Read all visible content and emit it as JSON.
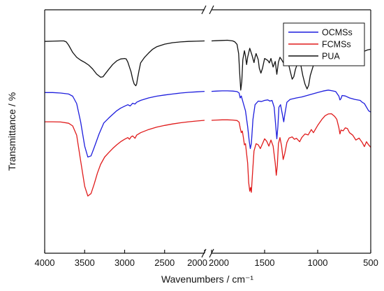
{
  "chart_data": {
    "type": "line",
    "xlabel": "Wavenumbers / cm⁻¹",
    "ylabel": "Transmittance / %",
    "grid": false,
    "legend_placement": "top-right",
    "x_axis": {
      "segments": [
        {
          "min": 4000,
          "max": 2000,
          "ticks": [
            4000,
            3500,
            3000,
            2500,
            2000
          ]
        },
        {
          "min": 2000,
          "max": 500,
          "ticks": [
            2000,
            1500,
            1000,
            500
          ]
        }
      ],
      "break": true
    },
    "ylim": [
      0,
      100
    ],
    "series": [
      {
        "name": "OCMSs",
        "color": "#1d1ddd",
        "points": [
          [
            4000,
            66
          ],
          [
            3900,
            66
          ],
          [
            3800,
            65.8
          ],
          [
            3700,
            65.4
          ],
          [
            3650,
            64.5
          ],
          [
            3600,
            61.5
          ],
          [
            3550,
            54
          ],
          [
            3500,
            44
          ],
          [
            3460,
            39.5
          ],
          [
            3420,
            40
          ],
          [
            3380,
            43.5
          ],
          [
            3320,
            49
          ],
          [
            3260,
            53.5
          ],
          [
            3200,
            55.5
          ],
          [
            3150,
            57
          ],
          [
            3100,
            58.5
          ],
          [
            3050,
            59.6
          ],
          [
            3000,
            60.4
          ],
          [
            2960,
            61
          ],
          [
            2930,
            60.5
          ],
          [
            2900,
            61.6
          ],
          [
            2870,
            61.3
          ],
          [
            2850,
            62
          ],
          [
            2800,
            62.8
          ],
          [
            2700,
            63.8
          ],
          [
            2600,
            64.5
          ],
          [
            2500,
            65
          ],
          [
            2400,
            65.4
          ],
          [
            2300,
            65.8
          ],
          [
            2200,
            66.1
          ],
          [
            2100,
            66.3
          ],
          [
            2000,
            66.5
          ],
          [
            1950,
            66.6
          ],
          [
            1900,
            66.7
          ],
          [
            1850,
            66.7
          ],
          [
            1800,
            66.6
          ],
          [
            1760,
            66.4
          ],
          [
            1740,
            65.8
          ],
          [
            1730,
            63.8
          ],
          [
            1720,
            64.6
          ],
          [
            1700,
            61.5
          ],
          [
            1680,
            58.5
          ],
          [
            1660,
            52
          ],
          [
            1645,
            46
          ],
          [
            1635,
            43
          ],
          [
            1625,
            45
          ],
          [
            1610,
            55
          ],
          [
            1590,
            61
          ],
          [
            1560,
            62.5
          ],
          [
            1530,
            62.3
          ],
          [
            1500,
            62.8
          ],
          [
            1470,
            63
          ],
          [
            1450,
            62.5
          ],
          [
            1430,
            62.8
          ],
          [
            1410,
            60
          ],
          [
            1395,
            52
          ],
          [
            1385,
            47
          ],
          [
            1375,
            52
          ],
          [
            1365,
            60
          ],
          [
            1350,
            61
          ],
          [
            1330,
            56.5
          ],
          [
            1320,
            54
          ],
          [
            1310,
            57
          ],
          [
            1290,
            62
          ],
          [
            1260,
            63.2
          ],
          [
            1200,
            63.8
          ],
          [
            1150,
            64.2
          ],
          [
            1100,
            64.8
          ],
          [
            1050,
            65.4
          ],
          [
            1000,
            66
          ],
          [
            950,
            66.6
          ],
          [
            900,
            67
          ],
          [
            860,
            66.7
          ],
          [
            830,
            66.4
          ],
          [
            800,
            64.5
          ],
          [
            790,
            63
          ],
          [
            780,
            63.5
          ],
          [
            770,
            64.8
          ],
          [
            740,
            64.6
          ],
          [
            700,
            63.8
          ],
          [
            650,
            63.2
          ],
          [
            600,
            62.8
          ],
          [
            580,
            62
          ],
          [
            560,
            61.5
          ],
          [
            540,
            60
          ],
          [
            520,
            58.5
          ],
          [
            500,
            58
          ]
        ]
      },
      {
        "name": "FCMSs",
        "color": "#e01b1b",
        "points": [
          [
            4000,
            54
          ],
          [
            3900,
            54
          ],
          [
            3800,
            53.9
          ],
          [
            3700,
            53.4
          ],
          [
            3650,
            52.3
          ],
          [
            3600,
            48.5
          ],
          [
            3550,
            38
          ],
          [
            3500,
            27.5
          ],
          [
            3460,
            23.5
          ],
          [
            3420,
            24.5
          ],
          [
            3380,
            28.5
          ],
          [
            3340,
            33
          ],
          [
            3300,
            36.5
          ],
          [
            3250,
            39.5
          ],
          [
            3200,
            41.3
          ],
          [
            3150,
            43
          ],
          [
            3100,
            44.5
          ],
          [
            3050,
            45.8
          ],
          [
            3000,
            46.8
          ],
          [
            2960,
            47.5
          ],
          [
            2940,
            46.8
          ],
          [
            2920,
            47.8
          ],
          [
            2900,
            48.2
          ],
          [
            2870,
            47.2
          ],
          [
            2850,
            48.5
          ],
          [
            2800,
            49.5
          ],
          [
            2700,
            50.8
          ],
          [
            2600,
            51.8
          ],
          [
            2500,
            52.5
          ],
          [
            2400,
            53.1
          ],
          [
            2300,
            53.6
          ],
          [
            2200,
            54
          ],
          [
            2100,
            54.3
          ],
          [
            2000,
            54.6
          ],
          [
            1950,
            54.7
          ],
          [
            1900,
            54.8
          ],
          [
            1850,
            54.8
          ],
          [
            1800,
            54.7
          ],
          [
            1760,
            54.5
          ],
          [
            1740,
            53.8
          ],
          [
            1730,
            51.5
          ],
          [
            1720,
            49.5
          ],
          [
            1710,
            50.2
          ],
          [
            1700,
            47.5
          ],
          [
            1690,
            44.5
          ],
          [
            1680,
            45
          ],
          [
            1660,
            37
          ],
          [
            1650,
            29
          ],
          [
            1640,
            25.5
          ],
          [
            1632,
            27
          ],
          [
            1625,
            25
          ],
          [
            1615,
            32
          ],
          [
            1600,
            42
          ],
          [
            1580,
            45
          ],
          [
            1560,
            44.5
          ],
          [
            1540,
            43
          ],
          [
            1520,
            45
          ],
          [
            1500,
            47
          ],
          [
            1480,
            46
          ],
          [
            1460,
            44
          ],
          [
            1440,
            46.5
          ],
          [
            1420,
            44
          ],
          [
            1400,
            37
          ],
          [
            1390,
            32
          ],
          [
            1380,
            36
          ],
          [
            1370,
            45
          ],
          [
            1355,
            47.5
          ],
          [
            1340,
            44
          ],
          [
            1325,
            38.5
          ],
          [
            1310,
            41
          ],
          [
            1290,
            45.5
          ],
          [
            1270,
            47.3
          ],
          [
            1240,
            47.8
          ],
          [
            1220,
            46.8
          ],
          [
            1200,
            47.2
          ],
          [
            1170,
            45.8
          ],
          [
            1150,
            47.5
          ],
          [
            1120,
            49
          ],
          [
            1090,
            48.6
          ],
          [
            1060,
            50.8
          ],
          [
            1040,
            49.5
          ],
          [
            1000,
            52.5
          ],
          [
            960,
            55
          ],
          [
            930,
            56.5
          ],
          [
            900,
            57.2
          ],
          [
            870,
            57.3
          ],
          [
            840,
            56.2
          ],
          [
            820,
            55
          ],
          [
            800,
            51.5
          ],
          [
            790,
            49
          ],
          [
            780,
            50.6
          ],
          [
            760,
            50.3
          ],
          [
            740,
            51.5
          ],
          [
            720,
            51.2
          ],
          [
            700,
            49.5
          ],
          [
            670,
            48.5
          ],
          [
            640,
            46.5
          ],
          [
            610,
            47.3
          ],
          [
            580,
            45.5
          ],
          [
            560,
            43.8
          ],
          [
            540,
            45.8
          ],
          [
            520,
            44.5
          ],
          [
            500,
            43.5
          ]
        ]
      },
      {
        "name": "PUA",
        "color": "#111111",
        "points": [
          [
            4000,
            87
          ],
          [
            3900,
            87.1
          ],
          [
            3800,
            87.2
          ],
          [
            3760,
            87.2
          ],
          [
            3730,
            86.8
          ],
          [
            3700,
            85.5
          ],
          [
            3650,
            82.5
          ],
          [
            3600,
            80.5
          ],
          [
            3550,
            79.3
          ],
          [
            3500,
            78.4
          ],
          [
            3450,
            77.3
          ],
          [
            3400,
            75.7
          ],
          [
            3350,
            73.6
          ],
          [
            3300,
            72.3
          ],
          [
            3270,
            72.5
          ],
          [
            3240,
            73.8
          ],
          [
            3200,
            75.5
          ],
          [
            3150,
            77.5
          ],
          [
            3100,
            79
          ],
          [
            3050,
            79.8
          ],
          [
            3000,
            80
          ],
          [
            2980,
            79.8
          ],
          [
            2960,
            78.5
          ],
          [
            2940,
            76.5
          ],
          [
            2920,
            74.5
          ],
          [
            2900,
            71.5
          ],
          [
            2880,
            69.5
          ],
          [
            2860,
            68.8
          ],
          [
            2850,
            69.5
          ],
          [
            2840,
            71.5
          ],
          [
            2820,
            75
          ],
          [
            2800,
            78.2
          ],
          [
            2750,
            80.5
          ],
          [
            2700,
            82.2
          ],
          [
            2650,
            83.8
          ],
          [
            2600,
            84.8
          ],
          [
            2500,
            85.9
          ],
          [
            2400,
            86.5
          ],
          [
            2300,
            86.8
          ],
          [
            2200,
            87
          ],
          [
            2100,
            87.1
          ],
          [
            2000,
            87.2
          ],
          [
            1960,
            87.3
          ],
          [
            1900,
            87.4
          ],
          [
            1850,
            87.5
          ],
          [
            1800,
            87.2
          ],
          [
            1780,
            86.8
          ],
          [
            1760,
            85.8
          ],
          [
            1745,
            82
          ],
          [
            1735,
            74
          ],
          [
            1725,
            67
          ],
          [
            1715,
            70.5
          ],
          [
            1705,
            79.5
          ],
          [
            1690,
            83.2
          ],
          [
            1680,
            81
          ],
          [
            1670,
            77.5
          ],
          [
            1660,
            80.5
          ],
          [
            1640,
            84.2
          ],
          [
            1620,
            81.5
          ],
          [
            1600,
            78.3
          ],
          [
            1590,
            80.5
          ],
          [
            1580,
            82
          ],
          [
            1560,
            79.5
          ],
          [
            1550,
            76
          ],
          [
            1535,
            74
          ],
          [
            1520,
            76
          ],
          [
            1500,
            80
          ],
          [
            1470,
            79.2
          ],
          [
            1455,
            78.2
          ],
          [
            1440,
            80
          ],
          [
            1420,
            76.5
          ],
          [
            1400,
            78.8
          ],
          [
            1385,
            73.5
          ],
          [
            1370,
            78.5
          ],
          [
            1355,
            80.5
          ],
          [
            1340,
            79.5
          ],
          [
            1320,
            78
          ],
          [
            1300,
            79.5
          ],
          [
            1280,
            78.8
          ],
          [
            1260,
            75
          ],
          [
            1240,
            71.5
          ],
          [
            1225,
            72.5
          ],
          [
            1210,
            75.5
          ],
          [
            1190,
            78
          ],
          [
            1175,
            78.8
          ],
          [
            1160,
            77.5
          ],
          [
            1140,
            73
          ],
          [
            1120,
            69.5
          ],
          [
            1100,
            67.5
          ],
          [
            1085,
            69
          ],
          [
            1070,
            73
          ],
          [
            1050,
            75.8
          ],
          [
            1030,
            78.5
          ],
          [
            1000,
            80.5
          ],
          [
            980,
            81.5
          ],
          [
            960,
            80.8
          ],
          [
            940,
            82.5
          ],
          [
            920,
            83.8
          ],
          [
            900,
            84.2
          ],
          [
            880,
            82
          ],
          [
            860,
            83.3
          ],
          [
            840,
            82.5
          ],
          [
            820,
            82.8
          ],
          [
            800,
            79.5
          ],
          [
            790,
            81.5
          ],
          [
            770,
            82.5
          ],
          [
            740,
            81.2
          ],
          [
            720,
            80.5
          ],
          [
            700,
            82
          ],
          [
            680,
            81.5
          ],
          [
            650,
            82.2
          ],
          [
            620,
            82.5
          ],
          [
            600,
            82.3
          ],
          [
            560,
            83
          ],
          [
            530,
            83.5
          ],
          [
            500,
            83.8
          ]
        ]
      }
    ]
  }
}
